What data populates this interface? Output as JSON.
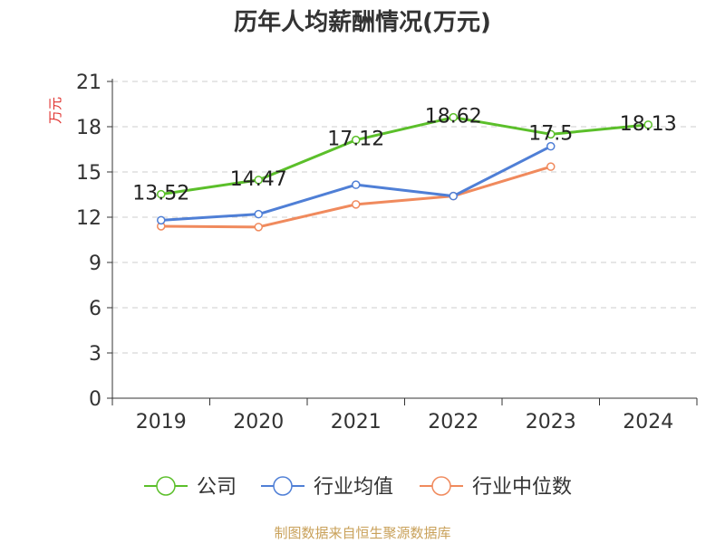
{
  "chart_data": {
    "type": "line",
    "title": "历年人均薪酬情况(万元)",
    "ylabel": "万元",
    "xlabel": "",
    "categories": [
      "2019",
      "2020",
      "2021",
      "2022",
      "2023",
      "2024"
    ],
    "ylim": [
      0,
      21
    ],
    "yticks": [
      0,
      3,
      6,
      9,
      12,
      15,
      18,
      21
    ],
    "grid": "horizontal-dashed",
    "legend_position": "bottom",
    "series": [
      {
        "name": "公司",
        "color": "#5bbf2a",
        "values": [
          13.52,
          14.47,
          17.12,
          18.62,
          17.5,
          18.13
        ],
        "labels": [
          "13.52",
          "14.47",
          "17.12",
          "18.62",
          "17.5",
          "18.13"
        ]
      },
      {
        "name": "行业均值",
        "color": "#4f7fd6",
        "values": [
          11.8,
          12.2,
          14.15,
          13.4,
          16.7,
          null
        ]
      },
      {
        "name": "行业中位数",
        "color": "#f08a5d",
        "values": [
          11.4,
          11.35,
          12.85,
          13.4,
          15.35,
          null
        ]
      }
    ]
  },
  "footer": {
    "source": "制图数据来自恒生聚源数据库"
  }
}
